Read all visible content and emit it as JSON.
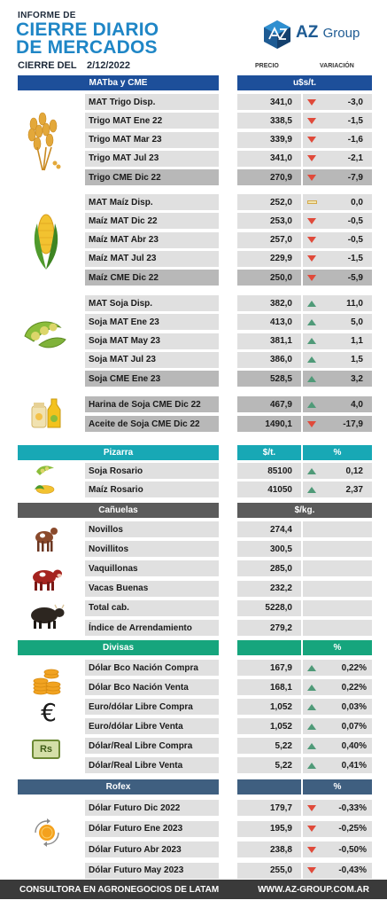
{
  "header": {
    "small_title": "INFORME DE",
    "title_line1": "CIERRE DIARIO",
    "title_line2": "DE MERCADOS",
    "date_label": "CIERRE DEL",
    "date": "2/12/2022",
    "col_price": "PRECIO",
    "col_var": "VARIACIÓN",
    "logo_az": "AZ",
    "logo_group": "Group"
  },
  "colors": {
    "blue": "#1d4f9a",
    "teal": "#18a8b5",
    "gray": "#5b5b5b",
    "green": "#16a57d",
    "slate": "#3f5f80",
    "down": "#e04a3a",
    "up": "#4f9a78"
  },
  "sections": {
    "matba": {
      "label": "MATba y CME",
      "unit": "u$s/t."
    },
    "pizarra": {
      "label": "Pizarra",
      "unit": "$/t.",
      "unit2": "%"
    },
    "canuelas": {
      "label": "Cañuelas",
      "unit": "$/kg."
    },
    "divisas": {
      "label": "Divisas",
      "unit": "%"
    },
    "rofex": {
      "label": "Rofex",
      "unit": "%"
    }
  },
  "trigo": [
    {
      "name": "MAT Trigo Disp.",
      "price": "341,0",
      "trend": "down",
      "var": "-3,0"
    },
    {
      "name": "Trigo MAT Ene 22",
      "price": "338,5",
      "trend": "down",
      "var": "-1,5"
    },
    {
      "name": "Trigo MAT Mar 23",
      "price": "339,9",
      "trend": "down",
      "var": "-1,6"
    },
    {
      "name": "Trigo MAT Jul 23",
      "price": "341,0",
      "trend": "down",
      "var": "-2,1"
    },
    {
      "name": "Trigo CME Dic 22",
      "price": "270,9",
      "trend": "down",
      "var": "-7,9"
    }
  ],
  "maiz": [
    {
      "name": "MAT Maíz Disp.",
      "price": "252,0",
      "trend": "flat",
      "var": "0,0"
    },
    {
      "name": "Maíz MAT Dic 22",
      "price": "253,0",
      "trend": "down",
      "var": "-0,5"
    },
    {
      "name": "Maíz MAT Abr 23",
      "price": "257,0",
      "trend": "down",
      "var": "-0,5"
    },
    {
      "name": "Maíz MAT Jul 23",
      "price": "229,9",
      "trend": "down",
      "var": "-1,5"
    },
    {
      "name": "Maíz CME Dic 22",
      "price": "250,0",
      "trend": "down",
      "var": "-5,9"
    }
  ],
  "soja": [
    {
      "name": "MAT Soja Disp.",
      "price": "382,0",
      "trend": "up",
      "var": "11,0"
    },
    {
      "name": "Soja MAT Ene 23",
      "price": "413,0",
      "trend": "up",
      "var": "5,0"
    },
    {
      "name": "Soja MAT May 23",
      "price": "381,1",
      "trend": "up",
      "var": "1,1"
    },
    {
      "name": "Soja MAT Jul 23",
      "price": "386,0",
      "trend": "up",
      "var": "1,5"
    },
    {
      "name": "Soja CME Ene 23",
      "price": "528,5",
      "trend": "up",
      "var": "3,2"
    }
  ],
  "derivados": [
    {
      "name": "Harina de Soja CME Dic 22",
      "price": "467,9",
      "trend": "up",
      "var": "4,0"
    },
    {
      "name": "Aceite de Soja CME Dic 22",
      "price": "1490,1",
      "trend": "down",
      "var": "-17,9"
    }
  ],
  "pizarra": [
    {
      "name": "Soja Rosario",
      "price": "85100",
      "trend": "up",
      "var": "0,12"
    },
    {
      "name": "Maíz Rosario",
      "price": "41050",
      "trend": "up",
      "var": "2,37"
    }
  ],
  "canuelas": [
    {
      "name": "Novillos",
      "price": "274,4"
    },
    {
      "name": "Novillitos",
      "price": "300,5"
    },
    {
      "name": "Vaquillonas",
      "price": "285,0"
    },
    {
      "name": "Vacas Buenas",
      "price": "232,2"
    },
    {
      "name": "Total cab.",
      "price": "5228,0"
    },
    {
      "name": "Índice de Arrendamiento",
      "price": "279,2"
    }
  ],
  "divisas": [
    {
      "name": "Dólar Bco Nación Compra",
      "price": "167,9",
      "trend": "up",
      "var": "0,22%"
    },
    {
      "name": "Dólar Bco Nación Venta",
      "price": "168,1",
      "trend": "up",
      "var": "0,22%"
    },
    {
      "name": "Euro/dólar Libre Compra",
      "price": "1,052",
      "trend": "up",
      "var": "0,03%"
    },
    {
      "name": "Euro/dólar Libre Venta",
      "price": "1,052",
      "trend": "up",
      "var": "0,07%"
    },
    {
      "name": "Dólar/Real Libre Compra",
      "price": "5,22",
      "trend": "up",
      "var": "0,40%"
    },
    {
      "name": "Dólar/Real Libre Venta",
      "price": "5,22",
      "trend": "up",
      "var": "0,41%"
    }
  ],
  "rofex": [
    {
      "name": "Dólar Futuro Dic 2022",
      "price": "179,7",
      "trend": "down",
      "var": "-0,33%"
    },
    {
      "name": "Dólar Futuro Ene 2023",
      "price": "195,9",
      "trend": "down",
      "var": "-0,25%"
    },
    {
      "name": "Dólar Futuro Abr 2023",
      "price": "238,8",
      "trend": "down",
      "var": "-0,50%"
    },
    {
      "name": "Dólar Futuro May 2023",
      "price": "255,0",
      "trend": "down",
      "var": "-0,43%"
    }
  ],
  "icons": {
    "real_symbol": "Rs",
    "euro_symbol": "€"
  },
  "footer": {
    "left": "CONSULTORA EN AGRONEGOCIOS DE LATAM",
    "right": "WWW.AZ-GROUP.COM.AR"
  }
}
